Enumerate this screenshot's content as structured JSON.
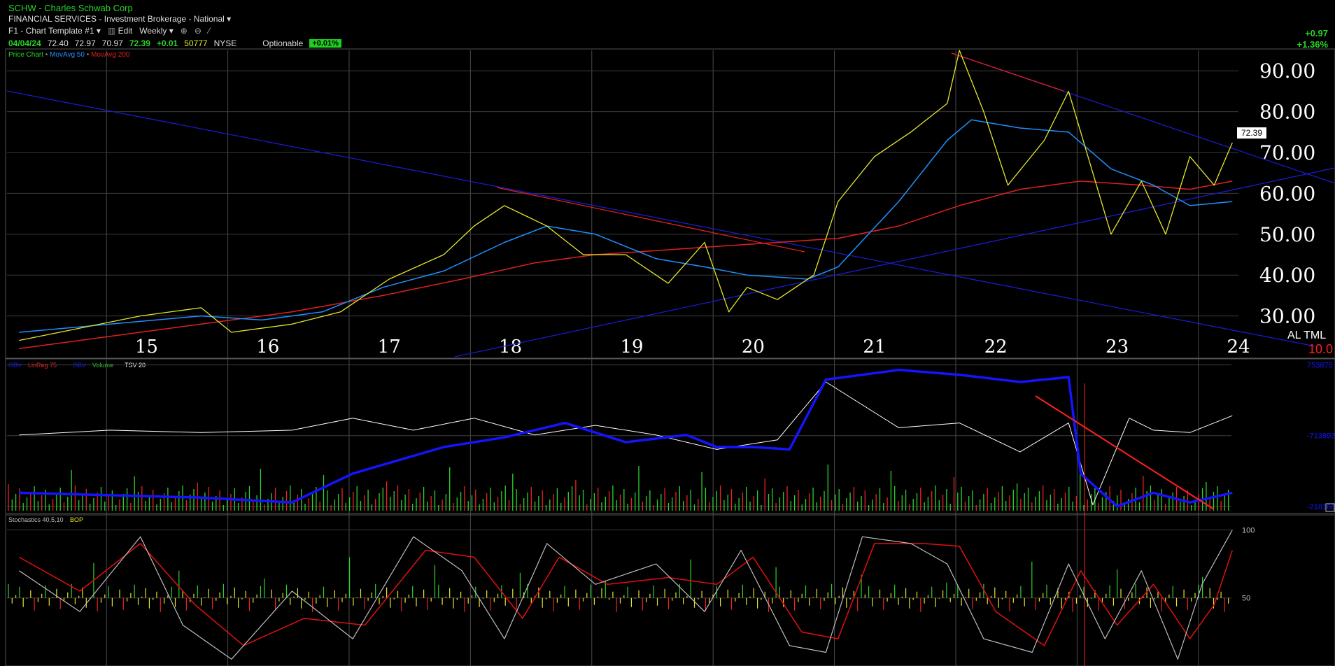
{
  "header": {
    "symbol": "SCHW",
    "company": "Charles Schwab Corp",
    "sector": "FINANCIAL SERVICES",
    "sub_sector": "Investment Brokerage - National",
    "template": "F1 - Chart Template #1",
    "edit_label": "Edit",
    "period": "Weekly",
    "optionable": "Optionable",
    "badge": "+0.01%"
  },
  "quote": {
    "date": "04/04/24",
    "open": "72.40",
    "high": "72.97",
    "low": "70.97",
    "close": "72.39",
    "change": "+0.01",
    "volume": "50777",
    "exchange": "NYSE"
  },
  "change_box": {
    "abs": "+0.97",
    "pct": "+1.36%"
  },
  "studies": {
    "price": "Price Chart",
    "ma50": "MovAvg 50",
    "ma200": "MovAvg 200",
    "sep": " • "
  },
  "colors": {
    "price_up": "#e6e62c",
    "price_green": "#2bd42b",
    "price_red": "#e33",
    "ma50": "#1e90ff",
    "ma200": "#e02020",
    "trend": "#1a1acc",
    "obv": "#1414ff",
    "linreg": "#ff2020",
    "stoch_k": "#bdbdbd",
    "stoch_d": "#e01010"
  },
  "last_price_label": "72.39",
  "corner": {
    "text": "AL TML",
    "value": "10.0"
  },
  "chart_data": [
    {
      "type": "line",
      "title": "",
      "x_categories": [
        "15",
        "16",
        "17",
        "18",
        "19",
        "20",
        "21",
        "22",
        "23",
        "24"
      ],
      "y_ticks": [
        "90.00",
        "80.00",
        "70.00",
        "60.00",
        "50.00",
        "40.00",
        "30.00"
      ],
      "ylim": [
        20,
        95
      ],
      "series": [
        {
          "name": "Price Chart",
          "x": [
            2014.25,
            2014.75,
            2015.25,
            2015.75,
            2016.0,
            2016.5,
            2016.9,
            2017.3,
            2017.75,
            2018.0,
            2018.25,
            2018.6,
            2018.9,
            2019.25,
            2019.6,
            2019.9,
            2020.1,
            2020.25,
            2020.5,
            2020.8,
            2021.0,
            2021.3,
            2021.6,
            2021.9,
            2022.0,
            2022.2,
            2022.4,
            2022.7,
            2022.9,
            2023.1,
            2023.25,
            2023.5,
            2023.7,
            2023.9,
            2024.1,
            2024.25
          ],
          "values": [
            24,
            27,
            30,
            32,
            26,
            28,
            31,
            39,
            45,
            52,
            57,
            52,
            45,
            45,
            38,
            48,
            31,
            37,
            34,
            40,
            58,
            69,
            75,
            82,
            95,
            80,
            62,
            73,
            85,
            65,
            50,
            63,
            50,
            69,
            62,
            72.39
          ]
        },
        {
          "name": "MovAvg 50",
          "x": [
            2014.25,
            2015.0,
            2015.75,
            2016.25,
            2016.75,
            2017.25,
            2017.75,
            2018.25,
            2018.6,
            2019.0,
            2019.5,
            2019.9,
            2020.25,
            2020.75,
            2021.0,
            2021.5,
            2021.9,
            2022.1,
            2022.5,
            2022.9,
            2023.25,
            2023.6,
            2023.9,
            2024.25
          ],
          "values": [
            26,
            28,
            30,
            29,
            31,
            37,
            41,
            48,
            52,
            50,
            44,
            42,
            40,
            39,
            42,
            58,
            73,
            78,
            76,
            75,
            66,
            62,
            57,
            58
          ]
        },
        {
          "name": "MovAvg 200",
          "x": [
            2014.25,
            2015.0,
            2015.75,
            2016.5,
            2017.25,
            2017.9,
            2018.5,
            2019.0,
            2019.5,
            2020.0,
            2020.5,
            2021.0,
            2021.5,
            2022.0,
            2022.5,
            2023.0,
            2023.5,
            2023.9,
            2024.25
          ],
          "values": [
            22,
            25,
            28,
            31,
            35,
            39,
            43,
            45,
            46,
            47,
            48,
            49,
            52,
            57,
            61,
            63,
            62,
            61,
            63
          ]
        }
      ]
    },
    {
      "type": "line",
      "title": "",
      "legend": [
        "OBV",
        "LinReg 75",
        "OBV",
        "Volume",
        "TSV 20"
      ],
      "y_ticks": [
        "753875",
        "-713893",
        "-2181660"
      ],
      "series": [
        {
          "name": "OBV",
          "x": [
            2014.25,
            2015.0,
            2015.75,
            2016.5,
            2017.0,
            2017.75,
            2018.25,
            2018.75,
            2019.25,
            2019.75,
            2020.0,
            2020.3,
            2020.6,
            2020.9,
            2021.5,
            2022.0,
            2022.5,
            2022.9,
            2023.0,
            2023.3,
            2023.6,
            2023.9,
            2024.25
          ],
          "values": [
            -1900000,
            -1950000,
            -2000000,
            -2100000,
            -1500000,
            -950000,
            -750000,
            -450000,
            -850000,
            -700000,
            -950000,
            -950000,
            -1000000,
            450000,
            650000,
            550000,
            400000,
            500000,
            -1500000,
            -2181660,
            -1900000,
            -2100000,
            -1900000
          ]
        },
        {
          "name": "TSV 20",
          "x": [
            2014.25,
            2015.0,
            2015.75,
            2016.5,
            2017.0,
            2017.5,
            2018.0,
            2018.5,
            2019.0,
            2019.5,
            2020.0,
            2020.5,
            2020.9,
            2021.5,
            2022.0,
            2022.5,
            2022.9,
            2023.1,
            2023.4,
            2023.6,
            2023.9,
            2024.25
          ],
          "values": [
            -700000,
            -600000,
            -650000,
            -600000,
            -350000,
            -600000,
            -350000,
            -700000,
            -500000,
            -700000,
            -1000000,
            -800000,
            400000,
            -550000,
            -450000,
            -1050000,
            -450000,
            -2150000,
            -350000,
            -600000,
            -650000,
            -300000
          ]
        }
      ]
    },
    {
      "type": "line",
      "title": "",
      "legend": [
        "Stochastics 40,5,10",
        "BOP"
      ],
      "y_ticks": [
        "100",
        "50"
      ],
      "series": [
        {
          "name": "Stochastics 40,5,10",
          "x": [
            2014.25,
            2014.75,
            2015.25,
            2015.6,
            2016.0,
            2016.5,
            2017.0,
            2017.5,
            2017.9,
            2018.25,
            2018.6,
            2019.0,
            2019.5,
            2019.9,
            2020.2,
            2020.6,
            2020.9,
            2021.2,
            2021.6,
            2021.9,
            2022.2,
            2022.6,
            2022.9,
            2023.2,
            2023.5,
            2023.8,
            2024.0,
            2024.25
          ],
          "values": [
            70,
            40,
            95,
            30,
            5,
            55,
            20,
            95,
            70,
            20,
            90,
            60,
            75,
            40,
            85,
            15,
            10,
            95,
            90,
            75,
            20,
            10,
            75,
            20,
            70,
            5,
            60,
            100
          ]
        },
        {
          "name": "Stochastics %D",
          "x": [
            2014.25,
            2014.75,
            2015.25,
            2015.7,
            2016.1,
            2016.6,
            2017.1,
            2017.6,
            2018.0,
            2018.4,
            2018.7,
            2019.1,
            2019.6,
            2020.0,
            2020.3,
            2020.7,
            2021.0,
            2021.3,
            2021.7,
            2022.0,
            2022.3,
            2022.7,
            2023.0,
            2023.3,
            2023.6,
            2023.9,
            2024.1,
            2024.25
          ],
          "values": [
            80,
            55,
            90,
            45,
            15,
            35,
            30,
            85,
            80,
            35,
            80,
            60,
            65,
            60,
            80,
            25,
            20,
            90,
            90,
            88,
            40,
            15,
            70,
            30,
            60,
            20,
            45,
            85
          ]
        }
      ]
    }
  ]
}
